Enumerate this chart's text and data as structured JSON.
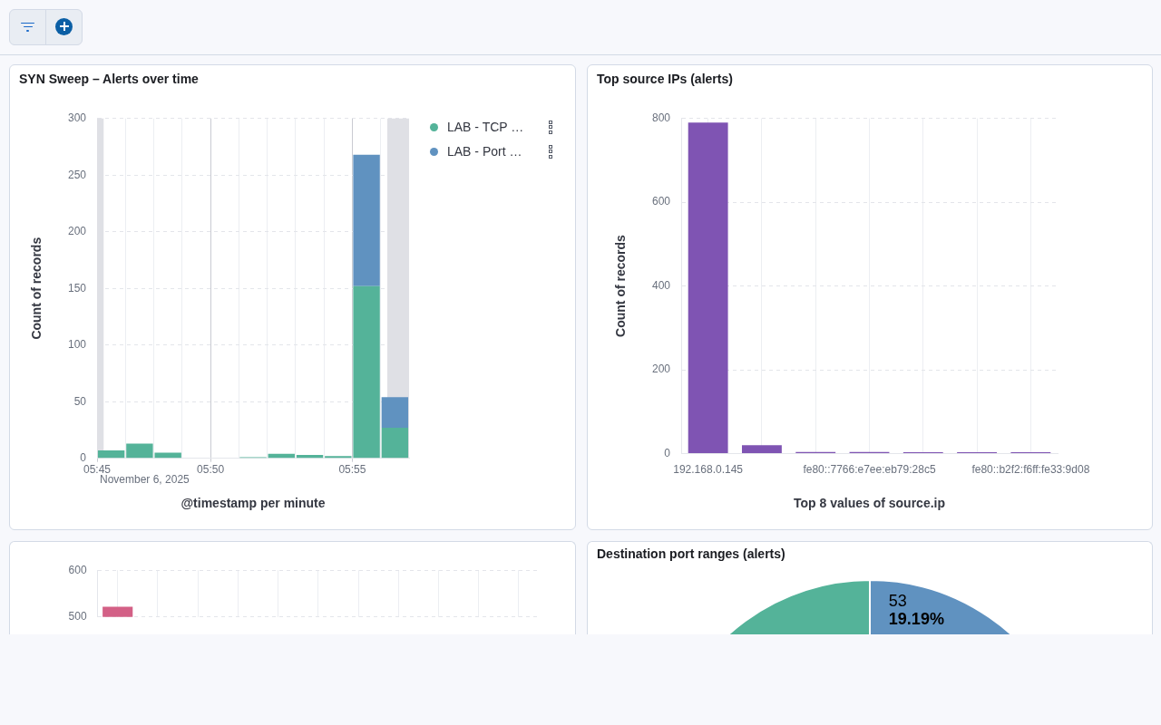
{
  "chart_data": [
    {
      "type": "bar",
      "title": "SYN Sweep – Alerts over time",
      "xlabel": "@timestamp per minute",
      "ylabel": "Count of records",
      "x": [
        "2025-11-06T05:46:30",
        "2025-11-06T05:47:30",
        "2025-11-06T05:48:30",
        "2025-11-06T05:49:30",
        "2025-11-06T05:50:30",
        "2025-11-06T05:51:30",
        "2025-11-06T05:52:30",
        "2025-11-06T05:53:30",
        "2025-11-06T05:54:30",
        "2025-11-06T05:55:30",
        "2025-11-06T05:56:30"
      ],
      "series": [
        {
          "name": "LAB - TCP …",
          "color": "#54b399",
          "values": [
            7,
            13,
            5,
            null,
            null,
            1,
            4,
            3,
            2,
            152,
            27
          ]
        },
        {
          "name": "LAB - Port …",
          "color": "#6092c0",
          "values": [
            null,
            null,
            null,
            null,
            null,
            null,
            null,
            null,
            null,
            116,
            27
          ]
        }
      ],
      "stacked": true,
      "xlim": [
        "2025-11-06T05:46",
        "2025-11-06T05:57"
      ],
      "xticks": [
        {
          "value": "2025-11-06T05:46",
          "label": "05:45"
        },
        {
          "value": "2025-11-06T05:47",
          "label": null
        },
        {
          "value": "2025-11-06T05:48",
          "label": null
        },
        {
          "value": "2025-11-06T05:49",
          "label": null
        },
        {
          "value": "2025-11-06T05:50",
          "label": "05:50"
        },
        {
          "value": "2025-11-06T05:51",
          "label": null
        },
        {
          "value": "2025-11-06T05:52",
          "label": null
        },
        {
          "value": "2025-11-06T05:53",
          "label": null
        },
        {
          "value": "2025-11-06T05:54",
          "label": null
        },
        {
          "value": "2025-11-06T05:55",
          "label": "05:55"
        },
        {
          "value": "2025-11-06T05:56",
          "label": null
        }
      ],
      "ylim": [
        0,
        300
      ],
      "yticks": [
        0,
        50,
        100,
        150,
        200,
        250,
        300
      ],
      "grid": true,
      "legend": "right",
      "bands": [
        {
          "axis": "x",
          "from": "2025-11-06T05:46",
          "to": "2025-11-06T05:46:14",
          "color": "#dfe0e5"
        },
        {
          "axis": "x",
          "from": "2025-11-06T05:56:14",
          "to": "2025-11-06T05:57",
          "color": "#dfe0e5"
        }
      ],
      "annotations": [
        "November 6, 2025"
      ]
    },
    {
      "type": "bar",
      "title": "Top source IPs (alerts)",
      "xlabel": "Top 8 values of source.ip",
      "ylabel": "Count of records",
      "categories": [
        "192.168.0.145",
        null,
        null,
        "fe80::7766:e7ee:eb79:28c5",
        null,
        null,
        "fe80::b2f2:f6ff:fe33:9d08"
      ],
      "values": [
        790,
        20,
        4,
        4,
        3,
        3,
        3
      ],
      "color": "#7f54b3",
      "ylim": [
        0,
        800
      ],
      "yticks": [
        0,
        200,
        400,
        600,
        800
      ],
      "grid": true
    },
    {
      "type": "bar",
      "categories": [
        null,
        null,
        null,
        null,
        null,
        null,
        null,
        null,
        null,
        null,
        null
      ],
      "values": [
        522,
        null,
        null,
        null,
        null,
        null,
        null,
        null,
        null,
        null,
        null
      ],
      "color": "#d36086",
      "ylim": [
        500,
        600
      ],
      "yticks": [
        500,
        600
      ],
      "grid": true,
      "tick_labels": "y"
    },
    {
      "type": "pie",
      "title": "Destination port ranges (alerts)",
      "categories": [
        null,
        null
      ],
      "values": [
        53,
        223
      ],
      "colors": [
        "#6092c0",
        "#54b399"
      ],
      "value_labels": [
        "53\n19.19%",
        null
      ]
    }
  ]
}
